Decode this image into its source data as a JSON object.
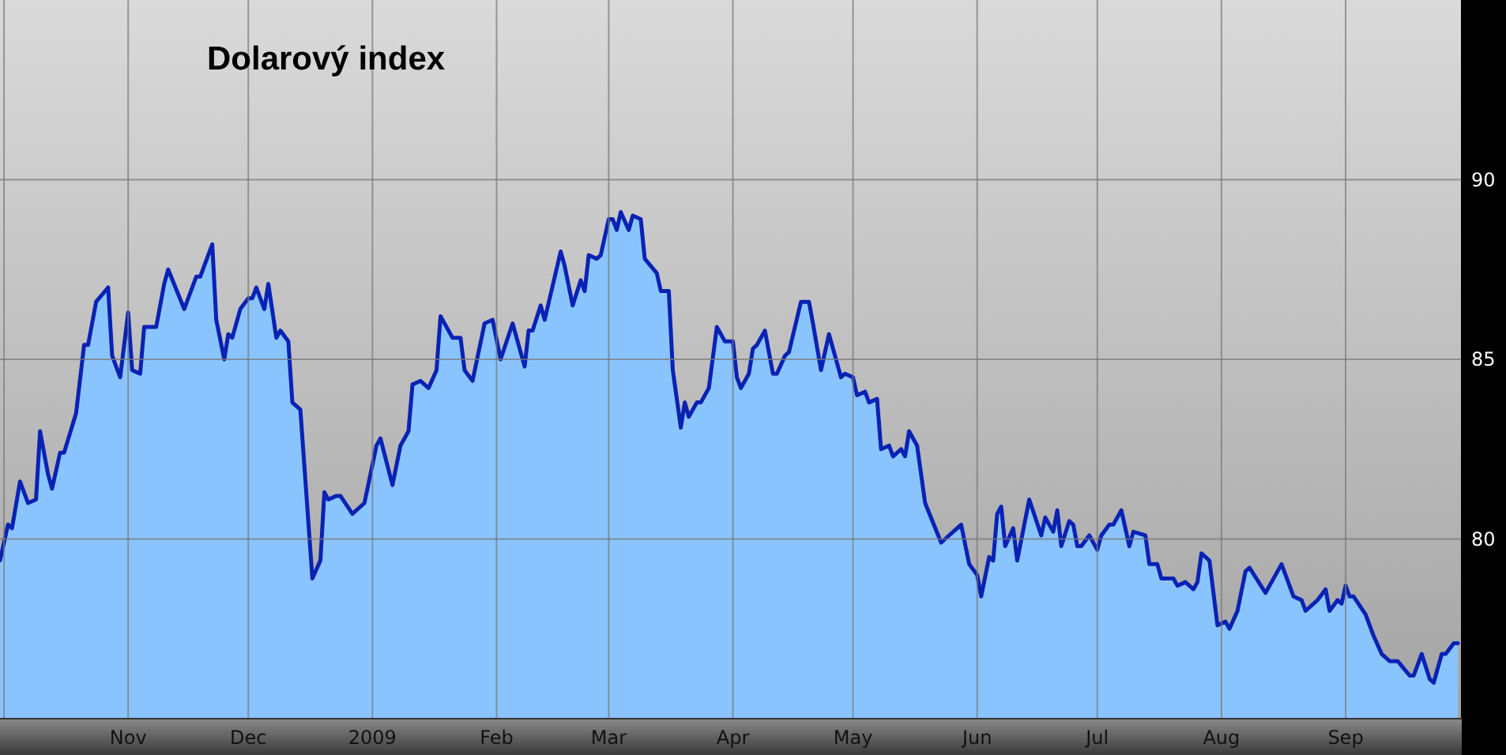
{
  "chart_data": {
    "type": "area",
    "title": "Dolarový index",
    "x": [
      "2008-09-30",
      "2008-10-02",
      "2008-10-03",
      "2008-10-05",
      "2008-10-07",
      "2008-10-09",
      "2008-10-10",
      "2008-10-12",
      "2008-10-13",
      "2008-10-15",
      "2008-10-16",
      "2008-10-19",
      "2008-10-21",
      "2008-10-22",
      "2008-10-24",
      "2008-10-27",
      "2008-10-28",
      "2008-10-30",
      "2008-11-01",
      "2008-11-02",
      "2008-11-04",
      "2008-11-05",
      "2008-11-08",
      "2008-11-10",
      "2008-11-11",
      "2008-11-15",
      "2008-11-18",
      "2008-11-19",
      "2008-11-22",
      "2008-11-23",
      "2008-11-25",
      "2008-11-26",
      "2008-11-27",
      "2008-11-29",
      "2008-12-01",
      "2008-12-02",
      "2008-12-03",
      "2008-12-05",
      "2008-12-06",
      "2008-12-08",
      "2008-12-09",
      "2008-12-11",
      "2008-12-12",
      "2008-12-14",
      "2008-12-17",
      "2008-12-19",
      "2008-12-20",
      "2008-12-21",
      "2008-12-23",
      "2008-12-24",
      "2008-12-27",
      "2008-12-30",
      "2009-01-02",
      "2009-01-03",
      "2009-01-06",
      "2009-01-08",
      "2009-01-10",
      "2009-01-11",
      "2009-01-13",
      "2009-01-15",
      "2009-01-17",
      "2009-01-18",
      "2009-01-21",
      "2009-01-23",
      "2009-01-24",
      "2009-01-26",
      "2009-01-29",
      "2009-01-31",
      "2009-02-02",
      "2009-02-05",
      "2009-02-08",
      "2009-02-09",
      "2009-02-10",
      "2009-02-12",
      "2009-02-13",
      "2009-02-17",
      "2009-02-18",
      "2009-02-20",
      "2009-02-22",
      "2009-02-23",
      "2009-02-24",
      "2009-02-26",
      "2009-02-27",
      "2009-03-01",
      "2009-03-02",
      "2009-03-03",
      "2009-03-04",
      "2009-03-06",
      "2009-03-07",
      "2009-03-09",
      "2009-03-10",
      "2009-03-13",
      "2009-03-14",
      "2009-03-16",
      "2009-03-17",
      "2009-03-19",
      "2009-03-20",
      "2009-03-21",
      "2009-03-23",
      "2009-03-24",
      "2009-03-26",
      "2009-03-28",
      "2009-03-30",
      "2009-04-01",
      "2009-04-02",
      "2009-04-03",
      "2009-04-05",
      "2009-04-06",
      "2009-04-07",
      "2009-04-09",
      "2009-04-11",
      "2009-04-12",
      "2009-04-14",
      "2009-04-15",
      "2009-04-18",
      "2009-04-20",
      "2009-04-21",
      "2009-04-23",
      "2009-04-25",
      "2009-04-28",
      "2009-04-29",
      "2009-05-01",
      "2009-05-02",
      "2009-05-04",
      "2009-05-05",
      "2009-05-07",
      "2009-05-08",
      "2009-05-10",
      "2009-05-11",
      "2009-05-13",
      "2009-05-14",
      "2009-05-15",
      "2009-05-17",
      "2009-05-19",
      "2009-05-23",
      "2009-05-24",
      "2009-05-27",
      "2009-05-28",
      "2009-05-30",
      "2009-06-01",
      "2009-06-02",
      "2009-06-04",
      "2009-06-05",
      "2009-06-06",
      "2009-06-07",
      "2009-06-08",
      "2009-06-10",
      "2009-06-11",
      "2009-06-14",
      "2009-06-17",
      "2009-06-18",
      "2009-06-20",
      "2009-06-21",
      "2009-06-22",
      "2009-06-24",
      "2009-06-25",
      "2009-06-26",
      "2009-06-27",
      "2009-06-29",
      "2009-07-01",
      "2009-07-02",
      "2009-07-04",
      "2009-07-05",
      "2009-07-07",
      "2009-07-09",
      "2009-07-10",
      "2009-07-13",
      "2009-07-14",
      "2009-07-16",
      "2009-07-17",
      "2009-07-20",
      "2009-07-21",
      "2009-07-23",
      "2009-07-25",
      "2009-07-26",
      "2009-07-27",
      "2009-07-29",
      "2009-07-31",
      "2009-08-02",
      "2009-08-03",
      "2009-08-05",
      "2009-08-07",
      "2009-08-08",
      "2009-08-12",
      "2009-08-16",
      "2009-08-19",
      "2009-08-21",
      "2009-08-22",
      "2009-08-24",
      "2009-08-25",
      "2009-08-27",
      "2009-08-28",
      "2009-08-30",
      "2009-08-31",
      "2009-09-01",
      "2009-09-02",
      "2009-09-03",
      "2009-09-06",
      "2009-09-08",
      "2009-09-10",
      "2009-09-12",
      "2009-09-14",
      "2009-09-17",
      "2009-09-18",
      "2009-09-20",
      "2009-09-22",
      "2009-09-23",
      "2009-09-25",
      "2009-09-26",
      "2009-09-28",
      "2009-09-29"
    ],
    "series": [
      {
        "color": "#0a22b4",
        "values": [
          79.4,
          80.4,
          80.3,
          81.6,
          81.0,
          81.1,
          83.0,
          81.8,
          81.4,
          82.4,
          82.4,
          83.5,
          85.4,
          85.4,
          86.6,
          87.0,
          85.1,
          84.5,
          86.3,
          84.7,
          84.6,
          85.9,
          85.9,
          87.1,
          87.5,
          86.4,
          87.3,
          87.3,
          88.2,
          86.1,
          85.0,
          85.7,
          85.6,
          86.4,
          86.7,
          86.7,
          87.0,
          86.4,
          87.1,
          85.6,
          85.8,
          85.5,
          83.8,
          83.6,
          78.9,
          79.4,
          81.3,
          81.1,
          81.2,
          81.2,
          80.7,
          81.0,
          82.6,
          82.8,
          81.5,
          82.6,
          83.0,
          84.3,
          84.4,
          84.2,
          84.7,
          86.2,
          85.6,
          85.6,
          84.7,
          84.4,
          86.0,
          86.1,
          85.0,
          86.0,
          84.8,
          85.8,
          85.8,
          86.5,
          86.1,
          88.0,
          87.6,
          86.5,
          87.2,
          86.9,
          87.9,
          87.8,
          87.9,
          88.9,
          88.9,
          88.6,
          89.1,
          88.6,
          89.0,
          88.9,
          87.8,
          87.4,
          86.9,
          86.9,
          84.7,
          83.1,
          83.8,
          83.4,
          83.8,
          83.8,
          84.2,
          85.9,
          85.5,
          85.5,
          84.5,
          84.2,
          84.6,
          85.3,
          85.4,
          85.8,
          84.6,
          84.6,
          85.1,
          85.2,
          86.6,
          86.6,
          86.0,
          84.7,
          85.7,
          84.5,
          84.6,
          84.5,
          84.0,
          84.1,
          83.8,
          83.9,
          82.5,
          82.6,
          82.3,
          82.5,
          82.3,
          83.0,
          82.6,
          81.0,
          79.9,
          80.0,
          80.3,
          80.4,
          79.3,
          79.0,
          78.4,
          79.5,
          79.4,
          80.7,
          80.9,
          79.8,
          80.3,
          79.4,
          81.1,
          80.1,
          80.6,
          80.2,
          80.8,
          79.8,
          80.5,
          80.4,
          79.8,
          79.8,
          80.1,
          79.7,
          80.1,
          80.4,
          80.4,
          80.8,
          79.8,
          80.2,
          80.1,
          79.3,
          79.3,
          78.9,
          78.9,
          78.7,
          78.8,
          78.6,
          78.8,
          79.6,
          79.4,
          77.6,
          77.7,
          77.5,
          78.0,
          79.1,
          79.2,
          78.5,
          79.3,
          78.4,
          78.3,
          78.0,
          78.2,
          78.3,
          78.6,
          78.0,
          78.3,
          78.2,
          78.7,
          78.4,
          78.4,
          77.9,
          77.3,
          76.8,
          76.6,
          76.6,
          76.2,
          76.2,
          76.8,
          76.1,
          76.0,
          76.8,
          76.8,
          77.1,
          77.1
        ]
      }
    ],
    "xlim": [
      "2008-09-30",
      "2009-09-30"
    ],
    "xticks": [
      {
        "value": "2008-10-01",
        "label": null
      },
      {
        "value": "2008-11-01",
        "label": "Nov"
      },
      {
        "value": "2008-12-01",
        "label": "Dec"
      },
      {
        "value": "2009-01-01",
        "label": "2009"
      },
      {
        "value": "2009-02-01",
        "label": "Feb"
      },
      {
        "value": "2009-03-01",
        "label": "Mar"
      },
      {
        "value": "2009-04-01",
        "label": "Apr"
      },
      {
        "value": "2009-05-01",
        "label": "May"
      },
      {
        "value": "2009-06-01",
        "label": "Jun"
      },
      {
        "value": "2009-07-01",
        "label": "Jul"
      },
      {
        "value": "2009-08-01",
        "label": "Aug"
      },
      {
        "value": "2009-09-01",
        "label": "Sep"
      }
    ],
    "ylim": [
      75,
      95
    ],
    "yticks": [
      80,
      85,
      90
    ],
    "grid": true
  }
}
